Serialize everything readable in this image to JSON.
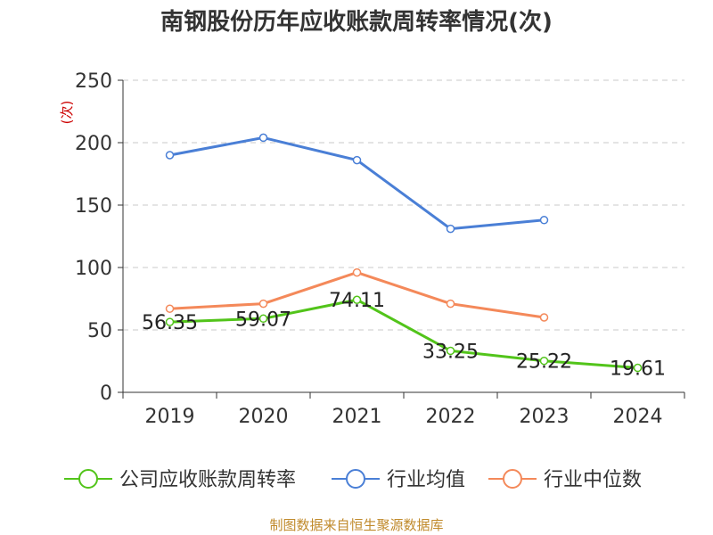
{
  "chart_data": {
    "type": "line",
    "title": "南钢股份历年应收账款周转率情况(次)",
    "ylabel": "(次)",
    "xlabel": "",
    "categories": [
      "2019",
      "2020",
      "2021",
      "2022",
      "2023",
      "2024"
    ],
    "ylim": [
      0,
      250
    ],
    "yticks": [
      0,
      50,
      100,
      150,
      200,
      250
    ],
    "grid": true,
    "legend_position": "bottom",
    "series": [
      {
        "name": "公司应收账款周转率",
        "color": "#52c41a",
        "values": [
          56.35,
          59.07,
          74.11,
          33.25,
          25.22,
          19.61
        ],
        "labels": [
          "56.35",
          "59.07",
          "74.11",
          "33.25",
          "25.22",
          "19.61"
        ]
      },
      {
        "name": "行业均值",
        "color": "#4a7fd6",
        "values": [
          190,
          204,
          186,
          131,
          138,
          null
        ]
      },
      {
        "name": "行业中位数",
        "color": "#f4895a",
        "values": [
          67,
          71,
          96,
          71,
          60,
          null
        ]
      }
    ],
    "source": "制图数据来自恒生聚源数据库"
  }
}
